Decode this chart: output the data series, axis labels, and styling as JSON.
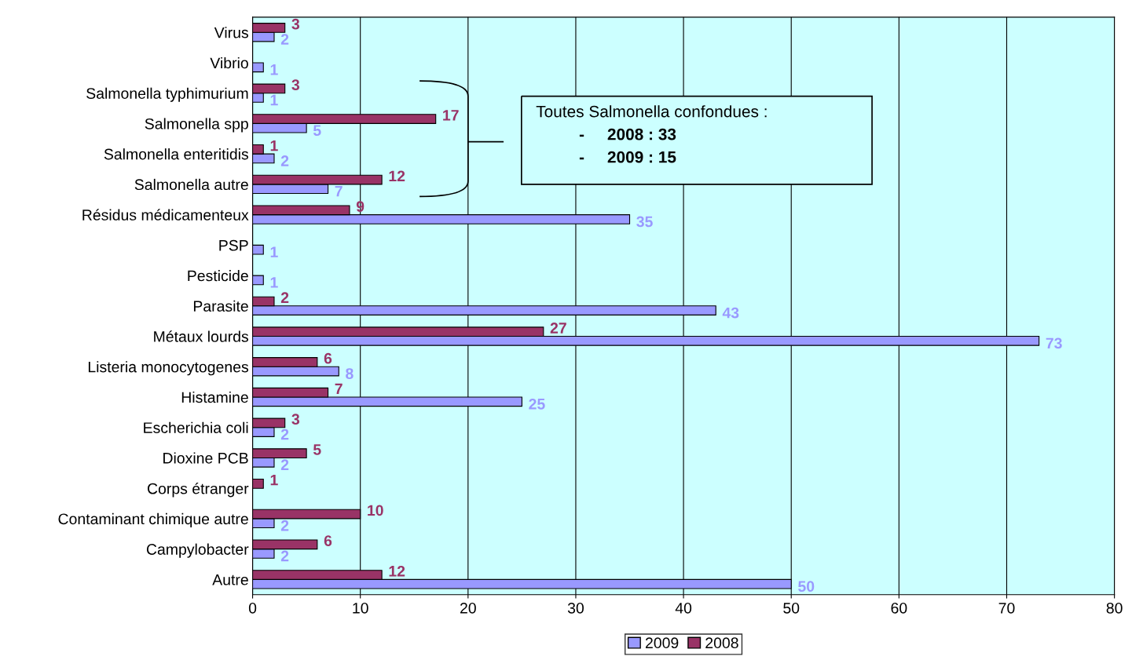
{
  "chart_data": {
    "type": "bar",
    "orientation": "horizontal",
    "categories": [
      "Virus",
      "Vibrio",
      "Salmonella typhimurium",
      "Salmonella spp",
      "Salmonella enteritidis",
      "Salmonella autre",
      "Résidus médicamenteux",
      "PSP",
      "Pesticide",
      "Parasite",
      "Métaux lourds",
      "Listeria monocytogenes",
      "Histamine",
      "Escherichia coli",
      "Dioxine PCB",
      "Corps étranger",
      "Contaminant chimique autre",
      "Campylobacter",
      "Autre"
    ],
    "series": [
      {
        "name": "2009",
        "color": "#9999ff",
        "values": [
          2,
          1,
          1,
          5,
          2,
          7,
          35,
          1,
          1,
          43,
          73,
          8,
          25,
          2,
          2,
          null,
          2,
          2,
          50
        ]
      },
      {
        "name": "2008",
        "color": "#993366",
        "values": [
          3,
          null,
          3,
          17,
          1,
          12,
          9,
          null,
          null,
          2,
          27,
          6,
          7,
          3,
          5,
          1,
          10,
          6,
          12
        ]
      }
    ],
    "xlim": [
      0,
      80
    ],
    "xticks": [
      0,
      10,
      20,
      30,
      40,
      50,
      60,
      70,
      80
    ],
    "grid": "x",
    "legend": "bottom",
    "data_labels": true,
    "annotations": [
      "Toutes Salmonella confondues :",
      "-     2008 : 33",
      "-     2009 : 15"
    ]
  }
}
